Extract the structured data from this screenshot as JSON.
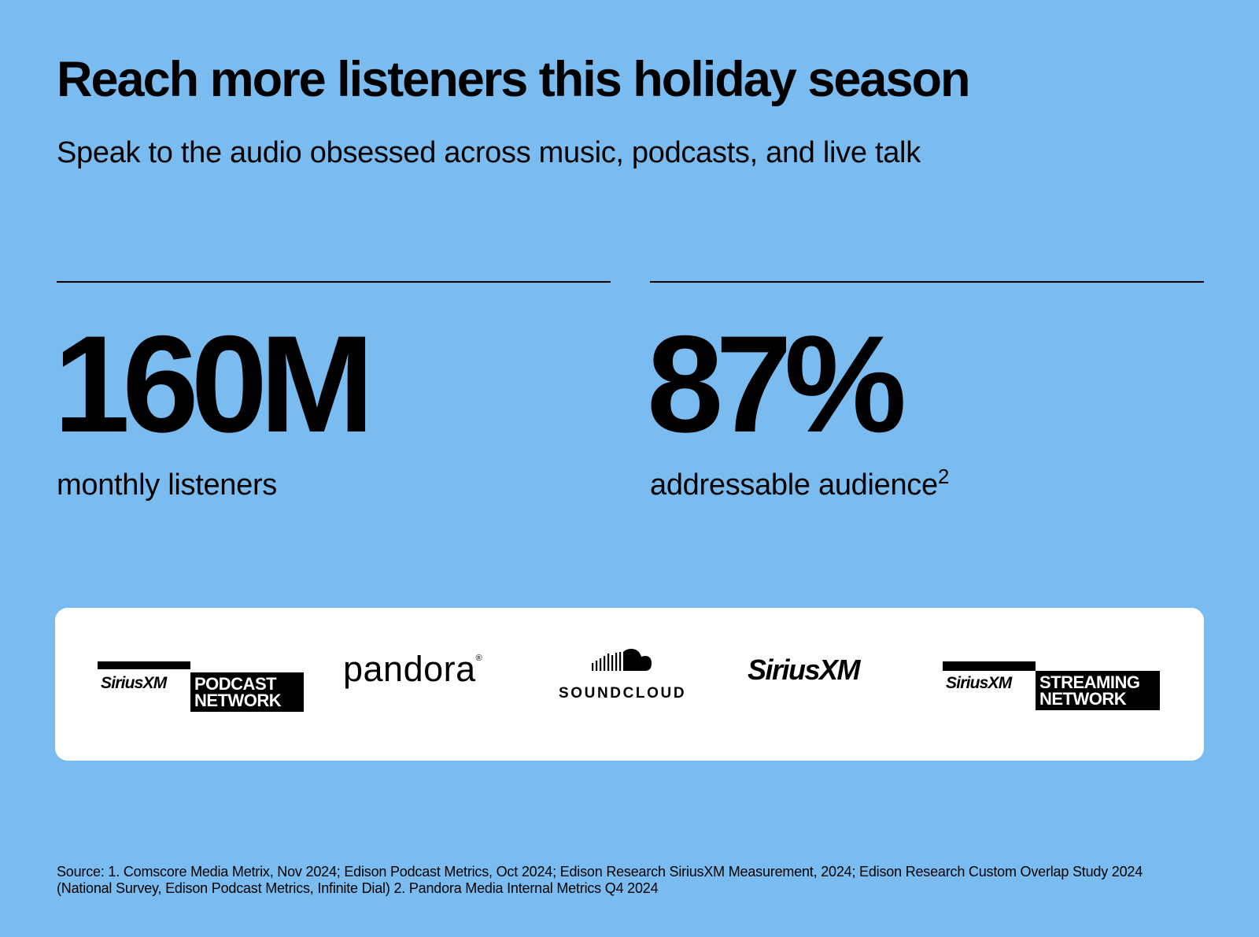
{
  "header": {
    "title": "Reach more listeners this holiday season",
    "subtitle": "Speak to the audio obsessed across music, podcasts, and live talk"
  },
  "stats": [
    {
      "value": "160M",
      "label": "monthly listeners",
      "footnote": ""
    },
    {
      "value": "87%",
      "label": "addressable audience",
      "footnote": "2"
    }
  ],
  "logos": {
    "podcast_network": {
      "brand": "SiriusXM",
      "box": "PODCAST\nNETWORK",
      "icon": "siriusxm-podcast-network-logo"
    },
    "pandora": {
      "name": "pandora",
      "mark": "®",
      "icon": "pandora-logo"
    },
    "soundcloud": {
      "name": "SOUNDCLOUD",
      "icon": "soundcloud-cloud-icon"
    },
    "siriusxm": {
      "name": "SiriusXM",
      "icon": "siriusxm-logo"
    },
    "streaming_network": {
      "brand": "SiriusXM",
      "box": "STREAMING\nNETWORK",
      "icon": "siriusxm-streaming-network-logo"
    }
  },
  "source": "Source: 1. Comscore Media Metrix, Nov 2024; Edison Podcast Metrics, Oct 2024; Edison Research SiriusXM Measurement, 2024;  Edison Research Custom Overlap Study 2024 (National Survey, Edison Podcast Metrics, Infinite Dial) 2. Pandora  Media Internal Metrics Q4 2024",
  "colors": {
    "background": "#7bbcf0",
    "card": "#ffffff",
    "text": "#000000"
  }
}
